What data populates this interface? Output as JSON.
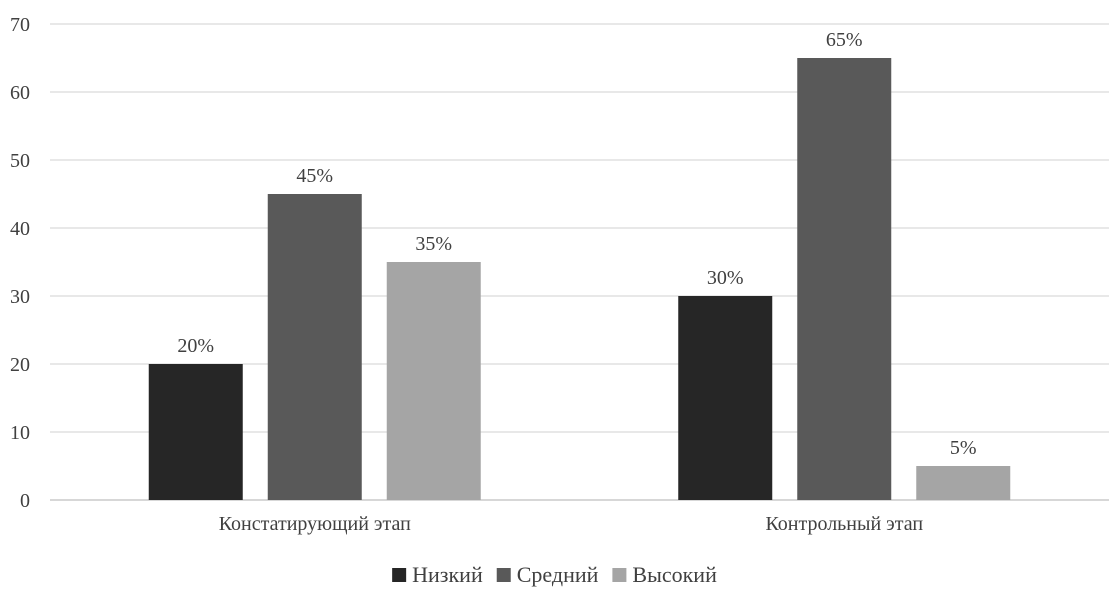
{
  "chart_data": {
    "type": "bar",
    "title": "",
    "xlabel": "",
    "ylabel": "",
    "categories": [
      "Констатирующий этап",
      "Контрольный этап"
    ],
    "series": [
      {
        "name": "Низкий",
        "values": [
          20,
          30
        ],
        "labels": [
          "20%",
          "30%"
        ],
        "color": "#262626"
      },
      {
        "name": "Средний",
        "values": [
          45,
          65
        ],
        "labels": [
          "45%",
          "65%"
        ],
        "color": "#595959"
      },
      {
        "name": "Высокий",
        "values": [
          35,
          5
        ],
        "labels": [
          "35%",
          "5%"
        ],
        "color": "#a5a5a5"
      }
    ],
    "ylim": [
      0,
      70
    ],
    "yticks": [
      0,
      10,
      20,
      30,
      40,
      50,
      60,
      70
    ],
    "grid": true,
    "legend_position": "bottom"
  }
}
